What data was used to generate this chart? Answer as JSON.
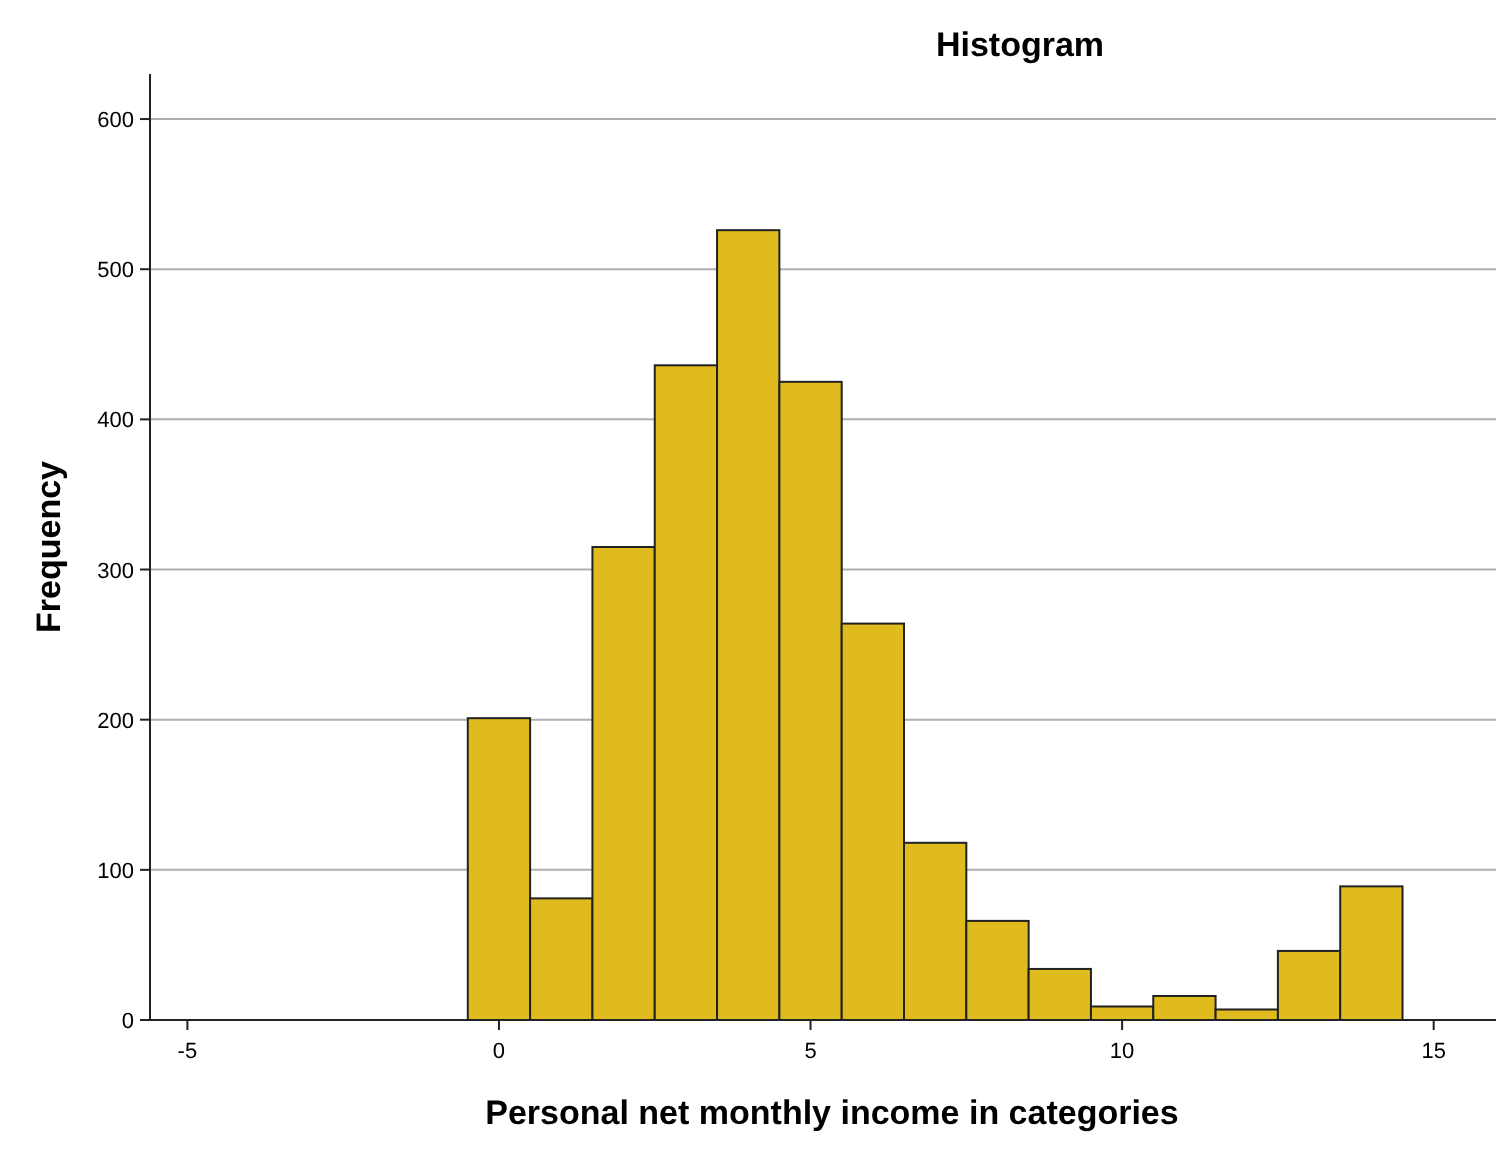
{
  "chart_data": {
    "type": "histogram",
    "title": "Histogram",
    "xlabel": "Personal net monthly income in categories",
    "ylabel": "Frequency",
    "bins": [
      -0.5,
      0.5,
      1.5,
      2.5,
      3.5,
      4.5,
      5.5,
      6.5,
      7.5,
      8.5,
      9.5,
      10.5,
      11.5,
      12.5,
      13.5,
      14.5
    ],
    "values": [
      201,
      81,
      315,
      436,
      526,
      425,
      264,
      118,
      66,
      34,
      9,
      16,
      7,
      46,
      89
    ],
    "color": "#e0bb1e",
    "xlim": [
      -5.6,
      16
    ],
    "xticks": [
      -5,
      0,
      5,
      10,
      15
    ],
    "ylim": [
      0,
      630
    ],
    "yticks": [
      0,
      100,
      200,
      300,
      400,
      500,
      600
    ],
    "grid": "y"
  }
}
